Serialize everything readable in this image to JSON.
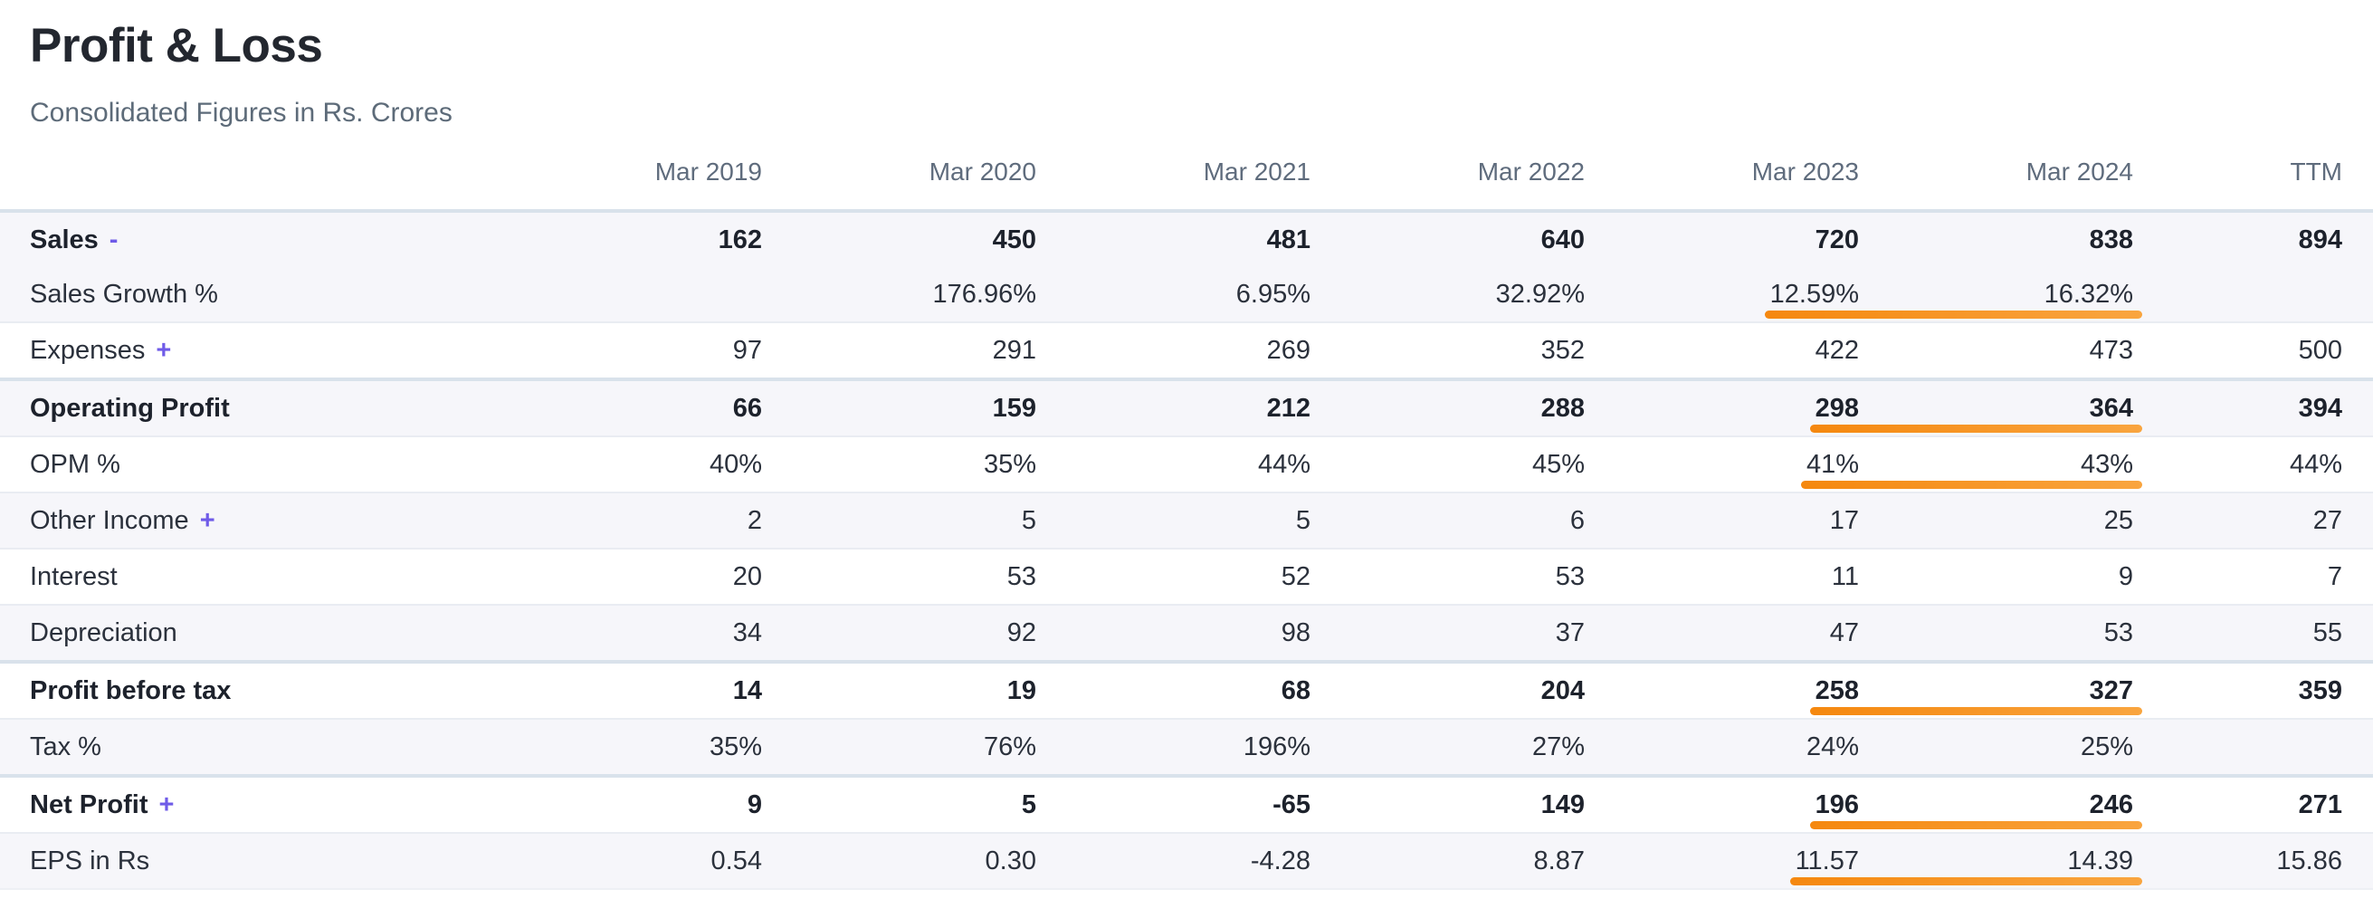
{
  "page": {
    "title": "Profit & Loss",
    "subtitle": "Consolidated Figures in Rs. Crores"
  },
  "colors": {
    "highlight_orange": "#f7941e",
    "accent_purple": "#6f5be8",
    "shaded_row_bg": "#f6f6fa",
    "strong_border": "#d9e2eb",
    "thin_border": "#e9ecf2",
    "header_text": "#5f6c7d",
    "body_text": "#2b313c",
    "bold_text": "#1d222c",
    "title_text": "#23272f",
    "subtitle_text": "#5d6b79"
  },
  "table": {
    "columns": [
      "",
      "Mar 2019",
      "Mar 2020",
      "Mar 2021",
      "Mar 2022",
      "Mar 2023",
      "Mar 2024",
      "TTM"
    ],
    "rows": [
      {
        "id": "sales",
        "label": "Sales",
        "toggle": "-",
        "bold": true,
        "shaded": true,
        "border": "none",
        "underline": false,
        "values": [
          "162",
          "450",
          "481",
          "640",
          "720",
          "838",
          "894"
        ]
      },
      {
        "id": "sales-growth",
        "label": "Sales Growth %",
        "toggle": "",
        "bold": false,
        "shaded": true,
        "border": "none",
        "underline": true,
        "values": [
          "",
          "176.96%",
          "6.95%",
          "32.92%",
          "12.59%",
          "16.32%",
          ""
        ]
      },
      {
        "id": "expenses",
        "label": "Expenses",
        "toggle": "+",
        "bold": false,
        "shaded": false,
        "border": "thin",
        "underline": false,
        "values": [
          "97",
          "291",
          "269",
          "352",
          "422",
          "473",
          "500"
        ]
      },
      {
        "id": "operating-profit",
        "label": "Operating Profit",
        "toggle": "",
        "bold": true,
        "shaded": true,
        "border": "strong",
        "underline": true,
        "values": [
          "66",
          "159",
          "212",
          "288",
          "298",
          "364",
          "394"
        ]
      },
      {
        "id": "opm",
        "label": "OPM %",
        "toggle": "",
        "bold": false,
        "shaded": false,
        "border": "thin",
        "underline": true,
        "values": [
          "40%",
          "35%",
          "44%",
          "45%",
          "41%",
          "43%",
          "44%"
        ]
      },
      {
        "id": "other-income",
        "label": "Other Income",
        "toggle": "+",
        "bold": false,
        "shaded": true,
        "border": "thin",
        "underline": false,
        "values": [
          "2",
          "5",
          "5",
          "6",
          "17",
          "25",
          "27"
        ]
      },
      {
        "id": "interest",
        "label": "Interest",
        "toggle": "",
        "bold": false,
        "shaded": false,
        "border": "thin",
        "underline": false,
        "values": [
          "20",
          "53",
          "52",
          "53",
          "11",
          "9",
          "7"
        ]
      },
      {
        "id": "depreciation",
        "label": "Depreciation",
        "toggle": "",
        "bold": false,
        "shaded": true,
        "border": "thin",
        "underline": false,
        "values": [
          "34",
          "92",
          "98",
          "37",
          "47",
          "53",
          "55"
        ]
      },
      {
        "id": "profit-before-tax",
        "label": "Profit before tax",
        "toggle": "",
        "bold": true,
        "shaded": false,
        "border": "strong",
        "underline": true,
        "values": [
          "14",
          "19",
          "68",
          "204",
          "258",
          "327",
          "359"
        ]
      },
      {
        "id": "tax",
        "label": "Tax %",
        "toggle": "",
        "bold": false,
        "shaded": true,
        "border": "thin",
        "underline": false,
        "values": [
          "35%",
          "76%",
          "196%",
          "27%",
          "24%",
          "25%",
          ""
        ]
      },
      {
        "id": "net-profit",
        "label": "Net Profit",
        "toggle": "+",
        "bold": true,
        "shaded": false,
        "border": "strong",
        "underline": true,
        "values": [
          "9",
          "5",
          "-65",
          "149",
          "196",
          "246",
          "271"
        ]
      },
      {
        "id": "eps",
        "label": "EPS in Rs",
        "toggle": "",
        "bold": false,
        "shaded": true,
        "border": "thin",
        "underline": true,
        "values": [
          "0.54",
          "0.30",
          "-4.28",
          "8.87",
          "11.57",
          "14.39",
          "15.86"
        ]
      }
    ]
  }
}
